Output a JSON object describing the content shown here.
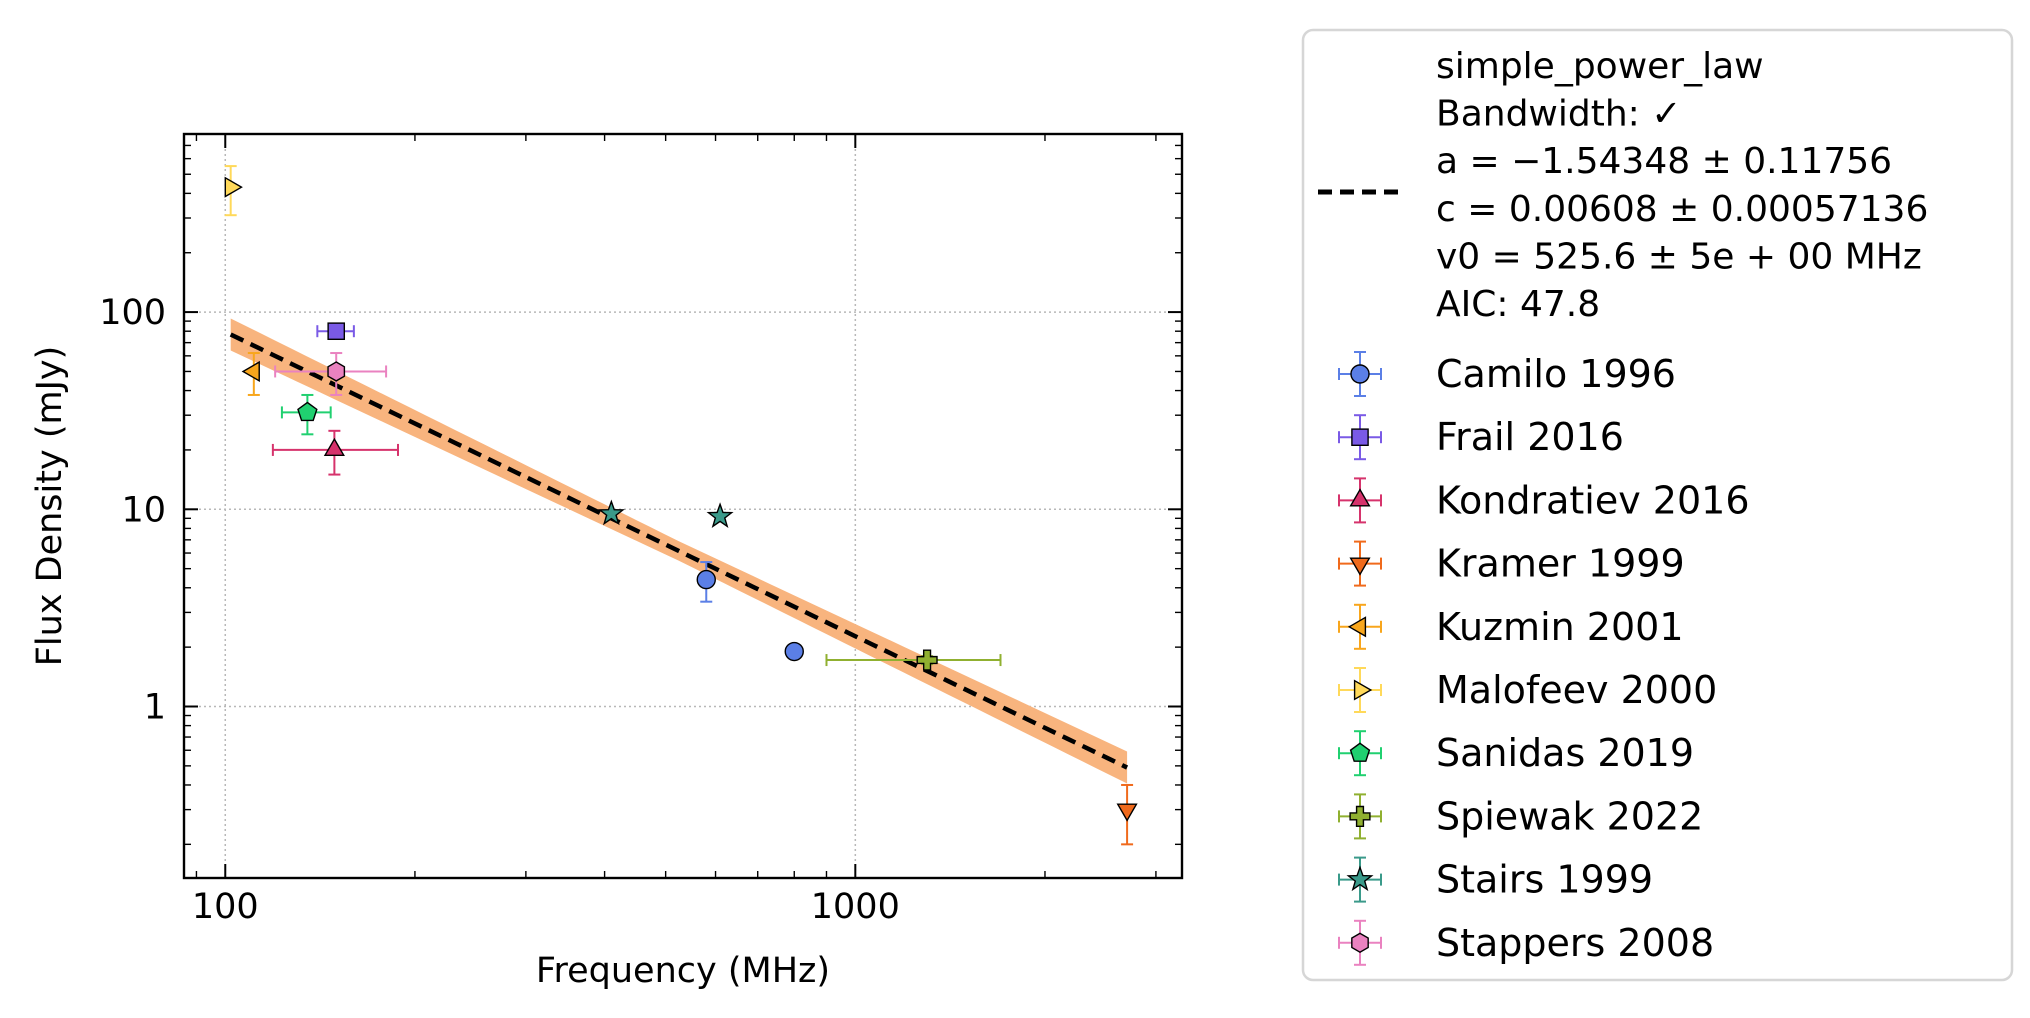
{
  "chart_data": {
    "type": "scatter",
    "xlabel": "Frequency (MHz)",
    "ylabel": "Flux Density (mJy)",
    "xscale": "log",
    "yscale": "log",
    "xlim": [
      86,
      3300
    ],
    "ylim": [
      0.135,
      800
    ],
    "xticks": [
      {
        "value": 100,
        "label": "100"
      },
      {
        "value": 1000,
        "label": "1000"
      }
    ],
    "yticks": [
      {
        "value": 1,
        "label": "1"
      },
      {
        "value": 10,
        "label": "10"
      },
      {
        "value": 100,
        "label": "100"
      }
    ],
    "grid": true,
    "legend_position": "right, outside plot",
    "fit": {
      "label_lines": [
        "simple_power_law",
        "Bandwidth: ✓",
        "a = −1.54348 ± 0.11756",
        "c = 0.00608 ± 0.00057136",
        "v0 = 525.6 ± 5e + 00 MHz",
        "AIC: 47.8"
      ],
      "a": -1.54348,
      "c": 0.00608,
      "v0": 525.6,
      "x_range": [
        102,
        2700
      ],
      "band_frac": 0.12,
      "line_color": "#000000",
      "band_color": "#f8b47e"
    },
    "series": [
      {
        "name": "Camilo 1996",
        "marker": "circle",
        "color": "#5b7fe6",
        "points": [
          {
            "x": 580,
            "y": 4.4,
            "xerr": [
              0,
              0
            ],
            "yerr": [
              1.0,
              1.0
            ]
          },
          {
            "x": 800,
            "y": 1.9,
            "xerr": [
              0,
              0
            ],
            "yerr": [
              0.05,
              0.05
            ]
          }
        ]
      },
      {
        "name": "Frail 2016",
        "marker": "square",
        "color": "#7a5ae6",
        "points": [
          {
            "x": 150,
            "y": 80,
            "xerr": [
              10,
              10
            ],
            "yerr": [
              6,
              6
            ]
          }
        ]
      },
      {
        "name": "Kondratiev 2016",
        "marker": "triangle-up",
        "color": "#d6336c",
        "points": [
          {
            "x": 149,
            "y": 20,
            "xerr": [
              30,
              39
            ],
            "yerr": [
              5,
              5
            ]
          }
        ]
      },
      {
        "name": "Kramer 1999",
        "marker": "triangle-down",
        "color": "#f06a1c",
        "points": [
          {
            "x": 2700,
            "y": 0.3,
            "xerr": [
              0,
              0
            ],
            "yerr": [
              0.1,
              0.1
            ]
          }
        ]
      },
      {
        "name": "Kuzmin 2001",
        "marker": "triangle-left",
        "color": "#f8a61c",
        "points": [
          {
            "x": 111,
            "y": 50,
            "xerr": [
              0,
              0
            ],
            "yerr": [
              12,
              12
            ]
          }
        ]
      },
      {
        "name": "Malofeev 2000",
        "marker": "triangle-right",
        "color": "#ffd95a",
        "points": [
          {
            "x": 102,
            "y": 430,
            "xerr": [
              0,
              0
            ],
            "yerr": [
              120,
              120
            ]
          }
        ]
      },
      {
        "name": "Sanidas 2019",
        "marker": "pentagon",
        "color": "#20d070",
        "points": [
          {
            "x": 135,
            "y": 31,
            "xerr": [
              12,
              12
            ],
            "yerr": [
              7,
              7
            ]
          }
        ]
      },
      {
        "name": "Spiewak 2022",
        "marker": "plus",
        "color": "#90b030",
        "points": [
          {
            "x": 1300,
            "y": 1.72,
            "xerr": [
              400,
              400
            ],
            "yerr": [
              0.08,
              0.08
            ]
          }
        ]
      },
      {
        "name": "Stairs 1999",
        "marker": "star",
        "color": "#3a9a8a",
        "points": [
          {
            "x": 410,
            "y": 9.5,
            "xerr": [
              0,
              0
            ],
            "yerr": [
              0.4,
              0.4
            ]
          },
          {
            "x": 610,
            "y": 9.2,
            "xerr": [
              0,
              0
            ],
            "yerr": [
              0.4,
              0.4
            ]
          }
        ]
      },
      {
        "name": "Stappers 2008",
        "marker": "hexagon",
        "color": "#ea82c0",
        "points": [
          {
            "x": 150,
            "y": 50,
            "xerr": [
              30,
              30
            ],
            "yerr": [
              12,
              12
            ]
          }
        ]
      }
    ]
  }
}
